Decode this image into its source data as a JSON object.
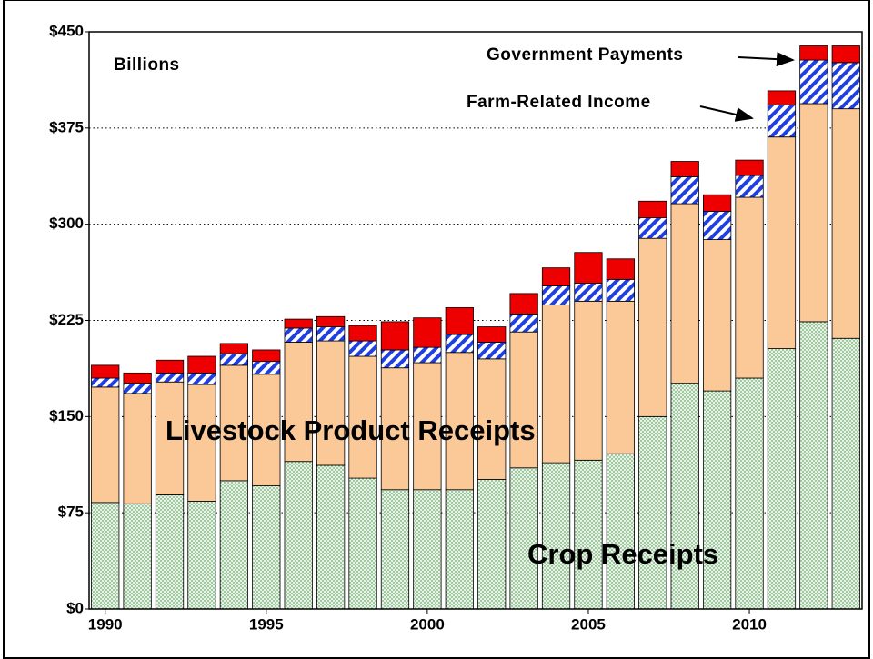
{
  "chart_data": {
    "type": "stacked-bar",
    "y_label": "Billions",
    "x": [
      1990,
      1991,
      1992,
      1993,
      1994,
      1995,
      1996,
      1997,
      1998,
      1999,
      2000,
      2001,
      2002,
      2003,
      2004,
      2005,
      2006,
      2007,
      2008,
      2009,
      2010,
      2011,
      2012,
      2013
    ],
    "xlim": [
      1989.5,
      2013.5
    ],
    "xticks": [
      1990,
      1995,
      2000,
      2005,
      2010
    ],
    "ylim": [
      0,
      450
    ],
    "yticks": [
      {
        "value": 0,
        "label": "$0"
      },
      {
        "value": 75,
        "label": "$75"
      },
      {
        "value": 150,
        "label": "$150"
      },
      {
        "value": 225,
        "label": "$225"
      },
      {
        "value": 300,
        "label": "$300"
      },
      {
        "value": 375,
        "label": "$375"
      },
      {
        "value": 450,
        "label": "$450"
      }
    ],
    "grid": true,
    "series": [
      {
        "name": "Crop Receipts",
        "color": "#d8ecd8",
        "values": [
          83,
          82,
          89,
          84,
          100,
          96,
          115,
          112,
          102,
          93,
          93,
          93,
          101,
          110,
          114,
          116,
          121,
          150,
          176,
          170,
          180,
          203,
          224,
          211
        ]
      },
      {
        "name": "Livestock Product Receipts",
        "color": "#fbc898",
        "values": [
          90,
          86,
          88,
          91,
          90,
          87,
          93,
          97,
          95,
          95,
          99,
          107,
          94,
          106,
          123,
          124,
          119,
          139,
          140,
          118,
          141,
          165,
          170,
          179
        ]
      },
      {
        "name": "Farm-Related Income",
        "color": "#1f3fe0",
        "values": [
          7,
          8,
          7,
          9,
          9,
          10,
          11,
          11,
          12,
          14,
          12,
          14,
          13,
          14,
          15,
          14,
          17,
          16,
          21,
          22,
          17,
          25,
          34,
          36
        ]
      },
      {
        "name": "Government Payments",
        "color": "#ee0000",
        "values": [
          10,
          8,
          10,
          13,
          8,
          9,
          7,
          8,
          12,
          22,
          23,
          21,
          12,
          16,
          14,
          24,
          16,
          13,
          12,
          13,
          12,
          11,
          11,
          13
        ]
      }
    ]
  }
}
